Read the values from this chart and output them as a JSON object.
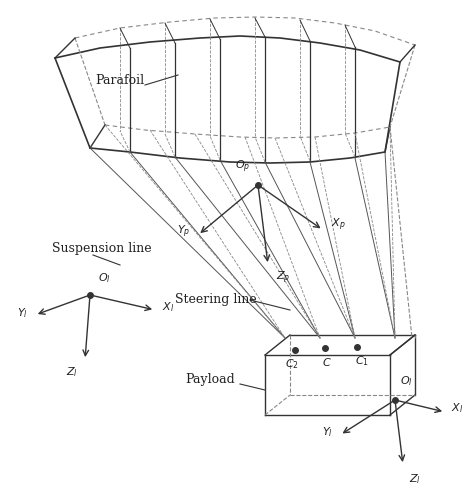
{
  "figsize": [
    4.74,
    5.01
  ],
  "dpi": 100,
  "bg_color": "#ffffff",
  "line_color": "#333333",
  "dashed_color": "#888888",
  "text_color": "#222222",
  "labels": {
    "parafoil": "Parafoil",
    "suspension_line": "Suspension line",
    "steering_line": "Steering line",
    "payload": "Payload",
    "Op": "O_p",
    "Ot1": "O_l",
    "Ot2": "O_l",
    "Xp": "X_p",
    "Yp": "Y_p",
    "Zp": "Z_p",
    "Xl1": "X_l",
    "Yl1": "Y_l",
    "Zl1": "Z_l",
    "Xl2": "X_l",
    "Yl2": "Y_l",
    "Zl2": "Z_l",
    "C": "C",
    "C1": "C_1",
    "C2": "C_2"
  }
}
